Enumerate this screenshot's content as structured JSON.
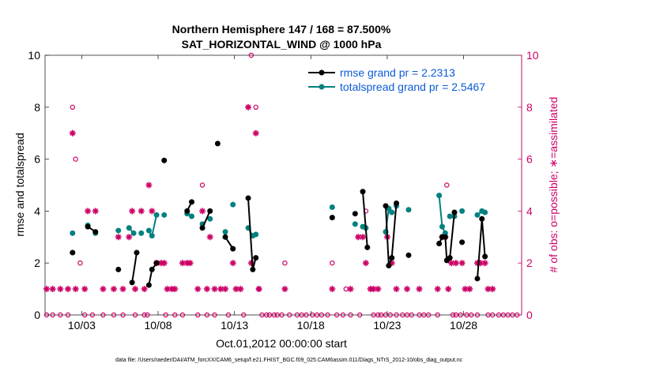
{
  "chart_data": {
    "type": "line",
    "title_line1": "Northern Hemisphere 147 / 168 = 87.500%",
    "title_line2": "SAT_HORIZONTAL_WIND @ 1000 hPa",
    "ylabel_left": "rmse and totalspread",
    "ylabel_right": "# of obs: o=possible; ∗=assimilated",
    "xlabel": "Oct.01,2012 00:00:00 start",
    "footer": "data file: /Users/raeder/DAI/ATM_forcXX/CAM6_setup/f.e21.FHIST_BGC.f09_025.CAM6assim.011/Diags_NTrS_2012-10/obs_diag_output.nc",
    "ylim_left": [
      0,
      10
    ],
    "ylim_right": [
      0,
      10
    ],
    "xlim": [
      0.6,
      31.8
    ],
    "yticks_left": [
      "0",
      "2",
      "4",
      "6",
      "8",
      "10"
    ],
    "yticks_right": [
      "0",
      "2",
      "4",
      "6",
      "8",
      "10"
    ],
    "xticks": [
      {
        "x": 3,
        "label": "10/03"
      },
      {
        "x": 8,
        "label": "10/08"
      },
      {
        "x": 13,
        "label": "10/13"
      },
      {
        "x": 18,
        "label": "10/18"
      },
      {
        "x": 23,
        "label": "10/23"
      },
      {
        "x": 28,
        "label": "10/28"
      }
    ],
    "colors": {
      "rmse": "#000000",
      "spread": "#00817f",
      "obs": "#cc0066",
      "legend_text": "#0b5bd7"
    },
    "series": [
      {
        "name": "rmse grand pr = 2.2313",
        "key": "rmse",
        "segments": [
          [
            [
              2.4,
              2.4
            ]
          ],
          [
            [
              3.4,
              3.4
            ],
            [
              3.9,
              3.2
            ]
          ],
          [
            [
              5.4,
              1.75
            ]
          ],
          [
            [
              6.3,
              1.25
            ],
            [
              6.6,
              2.4
            ]
          ],
          [
            [
              7.4,
              1.15
            ],
            [
              7.6,
              1.75
            ],
            [
              7.9,
              2.0
            ]
          ],
          [
            [
              8.4,
              5.95
            ]
          ],
          [
            [
              9.9,
              4.0
            ],
            [
              10.2,
              4.35
            ]
          ],
          [
            [
              10.9,
              3.35
            ],
            [
              11.4,
              4.0
            ]
          ],
          [
            [
              11.9,
              6.6
            ]
          ],
          [
            [
              12.4,
              3.0
            ],
            [
              12.9,
              2.55
            ]
          ],
          [
            [
              13.9,
              4.5
            ],
            [
              14.2,
              1.75
            ],
            [
              14.4,
              2.2
            ]
          ],
          [
            [
              19.4,
              3.75
            ]
          ],
          [
            [
              20.9,
              3.9
            ]
          ],
          [
            [
              21.4,
              4.75
            ],
            [
              21.7,
              2.6
            ]
          ],
          [
            [
              22.9,
              4.2
            ],
            [
              23.1,
              1.9
            ],
            [
              23.3,
              2.2
            ],
            [
              23.6,
              4.3
            ]
          ],
          [
            [
              24.4,
              2.3
            ]
          ],
          [
            [
              26.4,
              2.75
            ],
            [
              26.6,
              3.0
            ],
            [
              26.8,
              3.0
            ],
            [
              26.9,
              2.1
            ],
            [
              27.1,
              2.2
            ],
            [
              27.4,
              3.95
            ]
          ],
          [
            [
              27.9,
              2.8
            ]
          ],
          [
            [
              28.9,
              1.4
            ],
            [
              29.2,
              3.7
            ],
            [
              29.4,
              2.25
            ]
          ]
        ]
      },
      {
        "name": "totalspread grand pr = 2.5467",
        "key": "spread",
        "segments": [
          [
            [
              2.4,
              3.15
            ]
          ],
          [
            [
              3.4,
              3.45
            ]
          ],
          [
            [
              3.9,
              3.15
            ]
          ],
          [
            [
              5.4,
              3.25
            ]
          ],
          [
            [
              6.1,
              3.35
            ],
            [
              6.4,
              3.15
            ]
          ],
          [
            [
              6.9,
              3.15
            ]
          ],
          [
            [
              7.4,
              3.25
            ],
            [
              7.6,
              3.05
            ],
            [
              7.9,
              3.85
            ]
          ],
          [
            [
              8.4,
              3.85
            ]
          ],
          [
            [
              9.9,
              3.9
            ],
            [
              10.2,
              3.8
            ]
          ],
          [
            [
              10.9,
              3.5
            ]
          ],
          [
            [
              11.4,
              3.7
            ]
          ],
          [
            [
              12.4,
              3.2
            ]
          ],
          [
            [
              12.9,
              4.25
            ]
          ],
          [
            [
              13.9,
              3.35
            ],
            [
              14.2,
              3.05
            ],
            [
              14.4,
              3.1
            ]
          ],
          [
            [
              19.4,
              4.15
            ]
          ],
          [
            [
              20.9,
              3.5
            ]
          ],
          [
            [
              21.4,
              3.4
            ],
            [
              21.6,
              3.35
            ]
          ],
          [
            [
              22.9,
              3.2
            ],
            [
              23.1,
              4.1
            ],
            [
              23.3,
              3.95
            ]
          ],
          [
            [
              23.6,
              4.2
            ]
          ],
          [
            [
              24.4,
              4.05
            ]
          ],
          [
            [
              26.4,
              4.6
            ],
            [
              26.6,
              3.4
            ],
            [
              26.8,
              3.15
            ]
          ],
          [
            [
              27.1,
              3.8
            ]
          ],
          [
            [
              27.4,
              3.8
            ]
          ],
          [
            [
              27.9,
              4.0
            ]
          ],
          [
            [
              28.9,
              3.85
            ],
            [
              29.2,
              4.0
            ],
            [
              29.4,
              3.95
            ]
          ]
        ]
      }
    ],
    "obs_possible": [
      [
        0.7,
        0
      ],
      [
        1.1,
        0
      ],
      [
        1.6,
        0
      ],
      [
        2.1,
        0
      ],
      [
        2.4,
        8
      ],
      [
        2.6,
        6
      ],
      [
        2.9,
        2
      ],
      [
        3.2,
        0
      ],
      [
        3.7,
        0
      ],
      [
        4.4,
        0
      ],
      [
        5.1,
        0
      ],
      [
        5.7,
        0
      ],
      [
        6.5,
        0
      ],
      [
        7.1,
        0
      ],
      [
        7.3,
        0
      ],
      [
        7.9,
        2
      ],
      [
        8.5,
        0
      ],
      [
        9.1,
        0
      ],
      [
        9.6,
        0
      ],
      [
        10.6,
        0
      ],
      [
        10.9,
        5
      ],
      [
        11.2,
        0
      ],
      [
        11.7,
        0
      ],
      [
        12.6,
        0
      ],
      [
        13.6,
        0
      ],
      [
        14.1,
        10
      ],
      [
        14.4,
        8
      ],
      [
        14.6,
        1
      ],
      [
        14.8,
        0
      ],
      [
        15.1,
        0
      ],
      [
        15.3,
        0
      ],
      [
        15.6,
        0
      ],
      [
        15.8,
        0
      ],
      [
        16.1,
        0
      ],
      [
        16.3,
        2
      ],
      [
        16.6,
        0
      ],
      [
        17.1,
        0
      ],
      [
        17.4,
        0
      ],
      [
        17.7,
        0
      ],
      [
        18.1,
        0
      ],
      [
        18.4,
        0
      ],
      [
        18.7,
        0
      ],
      [
        19.1,
        0
      ],
      [
        19.4,
        2
      ],
      [
        19.7,
        0
      ],
      [
        20.1,
        0
      ],
      [
        20.3,
        1
      ],
      [
        20.6,
        0
      ],
      [
        21.2,
        0
      ],
      [
        21.6,
        4
      ],
      [
        22.1,
        0
      ],
      [
        22.4,
        0
      ],
      [
        22.6,
        0
      ],
      [
        22.9,
        0
      ],
      [
        23.2,
        0
      ],
      [
        23.6,
        0
      ],
      [
        24.0,
        0
      ],
      [
        24.3,
        0
      ],
      [
        24.6,
        0
      ],
      [
        25.1,
        0
      ],
      [
        25.4,
        0
      ],
      [
        25.7,
        0
      ],
      [
        26.3,
        0
      ],
      [
        26.6,
        3
      ],
      [
        26.9,
        5
      ],
      [
        27.3,
        0
      ],
      [
        27.5,
        0
      ],
      [
        27.8,
        0
      ],
      [
        28.2,
        0
      ],
      [
        28.5,
        0
      ],
      [
        28.9,
        0
      ],
      [
        29.6,
        0
      ],
      [
        29.9,
        0
      ],
      [
        30.3,
        0
      ],
      [
        30.6,
        0
      ],
      [
        30.9,
        0
      ],
      [
        31.2,
        0
      ],
      [
        31.5,
        0
      ]
    ],
    "obs_assimilated": [
      [
        0.7,
        1
      ],
      [
        1.1,
        1
      ],
      [
        1.6,
        1
      ],
      [
        2.1,
        1
      ],
      [
        2.4,
        7
      ],
      [
        2.6,
        1
      ],
      [
        3.2,
        1
      ],
      [
        3.4,
        4
      ],
      [
        3.9,
        4
      ],
      [
        4.4,
        1
      ],
      [
        5.1,
        1
      ],
      [
        5.4,
        3
      ],
      [
        5.7,
        1
      ],
      [
        6.1,
        3
      ],
      [
        6.3,
        4
      ],
      [
        6.5,
        1
      ],
      [
        6.9,
        4
      ],
      [
        7.1,
        1
      ],
      [
        7.4,
        5
      ],
      [
        7.6,
        4
      ],
      [
        7.9,
        2
      ],
      [
        8.2,
        2
      ],
      [
        8.4,
        2
      ],
      [
        8.6,
        1
      ],
      [
        8.9,
        1
      ],
      [
        9.1,
        1
      ],
      [
        9.6,
        2
      ],
      [
        9.9,
        2
      ],
      [
        10.1,
        2
      ],
      [
        10.6,
        1
      ],
      [
        10.9,
        4
      ],
      [
        11.2,
        1
      ],
      [
        11.4,
        3
      ],
      [
        11.7,
        1
      ],
      [
        12.1,
        1
      ],
      [
        12.4,
        1
      ],
      [
        12.9,
        2
      ],
      [
        13.1,
        1
      ],
      [
        13.4,
        1
      ],
      [
        13.9,
        8
      ],
      [
        14.1,
        2
      ],
      [
        14.4,
        7
      ],
      [
        14.6,
        1
      ],
      [
        16.3,
        1
      ],
      [
        19.4,
        1
      ],
      [
        20.6,
        1
      ],
      [
        21.1,
        3
      ],
      [
        21.4,
        3
      ],
      [
        21.6,
        2
      ],
      [
        21.9,
        1
      ],
      [
        22.1,
        1
      ],
      [
        22.4,
        1
      ],
      [
        23.0,
        3
      ],
      [
        23.3,
        2
      ],
      [
        23.6,
        1
      ],
      [
        24.3,
        1
      ],
      [
        25.1,
        1
      ],
      [
        26.3,
        1
      ],
      [
        26.6,
        3
      ],
      [
        26.8,
        3
      ],
      [
        27.0,
        1
      ],
      [
        27.2,
        2
      ],
      [
        27.5,
        2
      ],
      [
        27.9,
        2
      ],
      [
        28.1,
        1
      ],
      [
        28.4,
        1
      ],
      [
        28.9,
        2
      ],
      [
        29.1,
        2
      ],
      [
        29.4,
        2
      ],
      [
        29.6,
        1
      ],
      [
        29.9,
        1
      ]
    ]
  }
}
